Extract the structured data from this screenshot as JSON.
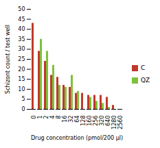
{
  "chart_data": {
    "type": "bar",
    "xlabel": "Drug concentration (pmol/200 μl)",
    "ylabel": "Schizont count / test well",
    "categories": [
      "0",
      "1",
      "2",
      "4",
      "8",
      "16",
      "32",
      "64",
      "128",
      "160",
      "256",
      "320",
      "640",
      "1280",
      "2560"
    ],
    "series": [
      {
        "name": "C",
        "color": "#c0392b",
        "values": [
          43,
          29,
          24,
          17,
          16,
          12,
          11,
          8,
          8,
          7,
          7,
          7,
          6,
          2,
          0
        ]
      },
      {
        "name": "QZ",
        "color": "#7dc13a",
        "values": [
          0,
          35,
          29,
          22,
          12,
          11,
          17,
          9,
          0,
          6,
          4,
          3,
          1,
          0,
          0
        ]
      }
    ],
    "ylim": [
      0,
      50
    ],
    "yticks": [
      0,
      5,
      10,
      15,
      20,
      25,
      30,
      35,
      40,
      45,
      50
    ],
    "grid": false,
    "legend": "right"
  }
}
